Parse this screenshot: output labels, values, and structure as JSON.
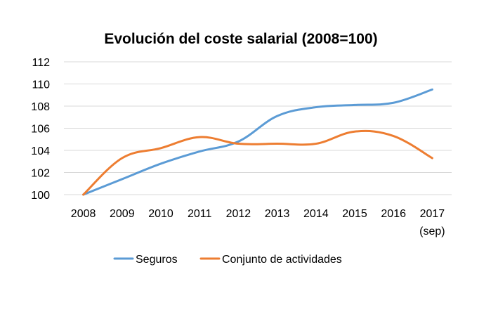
{
  "chart_data": {
    "type": "line",
    "title": "Evolución del coste salarial (2008=100)",
    "categories": [
      "2008",
      "2009",
      "2010",
      "2011",
      "2012",
      "2013",
      "2014",
      "2015",
      "2016",
      "2017"
    ],
    "category_sublabels": [
      "",
      "",
      "",
      "",
      "",
      "",
      "",
      "",
      "",
      "(sep)"
    ],
    "ylim": [
      100,
      112
    ],
    "yticks": [
      "100",
      "102",
      "104",
      "106",
      "108",
      "110",
      "112"
    ],
    "grid": true,
    "legend_position": "bottom",
    "series": [
      {
        "name": "Seguros",
        "color": "#5B9BD5",
        "values": [
          100.0,
          101.4,
          102.8,
          103.9,
          104.8,
          107.1,
          107.9,
          108.1,
          108.3,
          109.5
        ]
      },
      {
        "name": "Conjunto de actividades",
        "color": "#ED7D31",
        "values": [
          100.0,
          103.3,
          104.2,
          105.2,
          104.6,
          104.6,
          104.6,
          105.7,
          105.3,
          103.3
        ]
      }
    ]
  }
}
